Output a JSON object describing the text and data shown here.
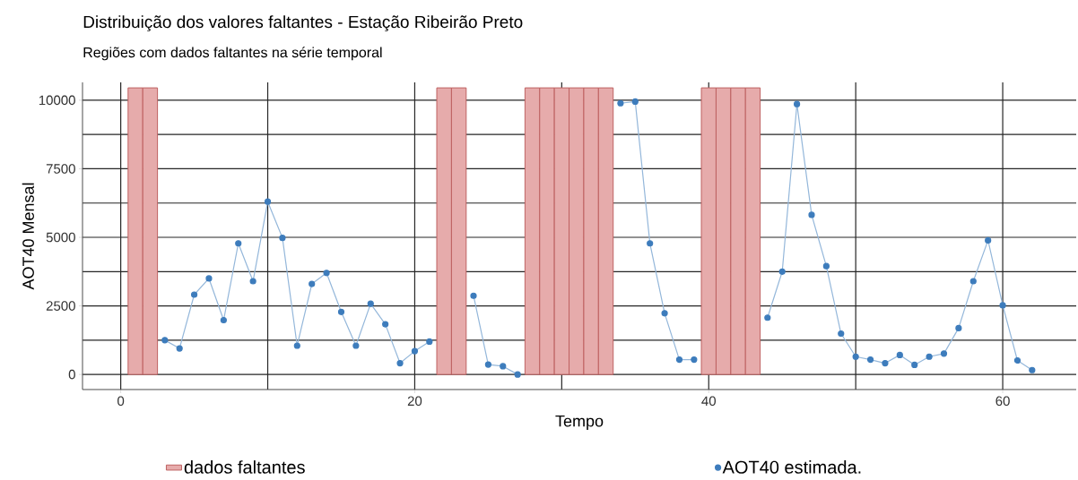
{
  "chart_data": {
    "type": "bar",
    "title": "Distribuição dos valores faltantes - Estação Ribeirão Preto",
    "subtitle": "Regiões com dados faltantes na série temporal",
    "xlabel": "Tempo",
    "ylabel": "AOT40 Mensal",
    "xlim": [
      -2.6,
      65
    ],
    "ylim": [
      -550,
      10650
    ],
    "xticks": [
      0,
      20,
      40,
      60
    ],
    "yticks": [
      0,
      2500,
      5000,
      7500,
      10000
    ],
    "grid": true,
    "legend": "bottom",
    "marker": "circle",
    "series": [
      {
        "name": "dados faltantes",
        "color": "#e6abab",
        "x": [
          1,
          2,
          22,
          23,
          28,
          29,
          30,
          31,
          32,
          33,
          40,
          41,
          42,
          43
        ],
        "values": [
          10450,
          10450,
          10450,
          10450,
          10450,
          10450,
          10450,
          10450,
          10450,
          10450,
          10450,
          10450,
          10450,
          10450
        ]
      },
      {
        "name": "AOT40 estimada.",
        "type": "line",
        "color": "#3d7cbc",
        "x": [
          3,
          4,
          5,
          6,
          7,
          8,
          9,
          10,
          11,
          12,
          13,
          14,
          15,
          16,
          17,
          18,
          19,
          20,
          21,
          22,
          23,
          24,
          25,
          26,
          27,
          28,
          29,
          30,
          31,
          32,
          33,
          34,
          35,
          36,
          37,
          38,
          39,
          40,
          41,
          42,
          43,
          44,
          45,
          46,
          47,
          48,
          49,
          50,
          51,
          52,
          53,
          54,
          55,
          56,
          57,
          58,
          59,
          60,
          61,
          62
        ],
        "values": [
          1250,
          950,
          2910,
          3500,
          1980,
          4780,
          3400,
          6300,
          4980,
          1050,
          3300,
          3700,
          2280,
          1050,
          2580,
          1830,
          410,
          850,
          1200,
          null,
          null,
          2870,
          360,
          300,
          0,
          null,
          null,
          null,
          null,
          null,
          null,
          9890,
          9950,
          4780,
          2230,
          540,
          540,
          null,
          null,
          null,
          null,
          2070,
          3750,
          9860,
          5820,
          3950,
          1490,
          650,
          540,
          410,
          710,
          350,
          650,
          760,
          1690,
          3400,
          4890,
          2520,
          510,
          160
        ]
      }
    ]
  }
}
